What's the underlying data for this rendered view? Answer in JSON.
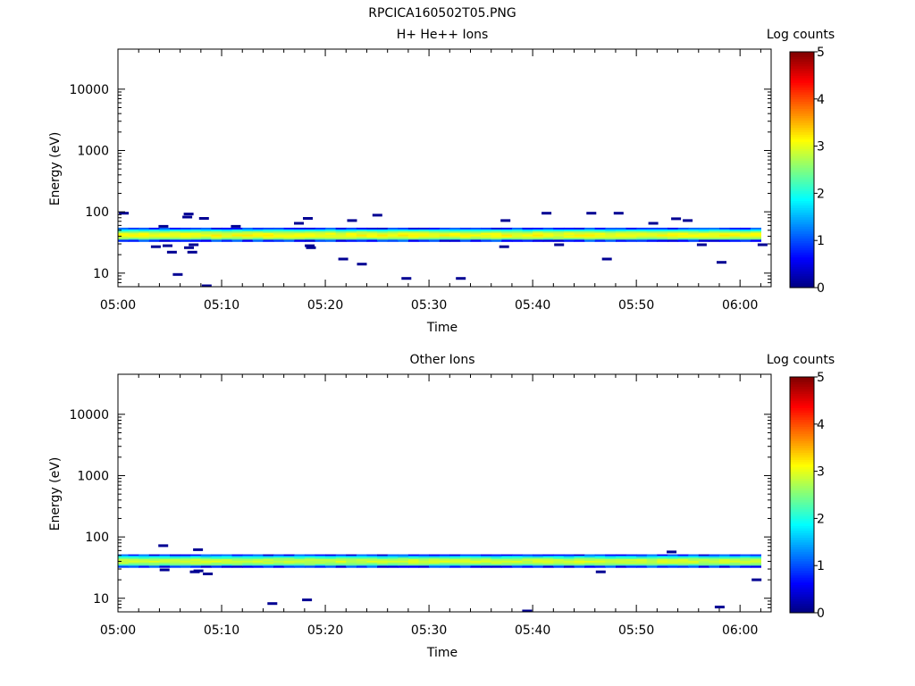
{
  "title": "RPCICA160502T05.PNG",
  "colors": {
    "colormap": [
      "#00007f",
      "#0000ff",
      "#007fff",
      "#00ffff",
      "#7fff7f",
      "#ffff00",
      "#ff7f00",
      "#ff0000",
      "#7f0000"
    ]
  },
  "chart_data": [
    {
      "type": "heatmap",
      "title": "H+ He++ Ions",
      "xlabel": "Time",
      "ylabel": "Energy (eV)",
      "xlim": [
        "05:00",
        "06:03"
      ],
      "ylim": [
        6,
        45000
      ],
      "yscale": "log",
      "xticks": [
        "05:00",
        "05:10",
        "05:20",
        "05:30",
        "05:40",
        "05:50",
        "06:00"
      ],
      "yticks": [
        "10",
        "100",
        "1000",
        "10000"
      ],
      "colorbar": {
        "label": "Log counts",
        "range": [
          0,
          5
        ],
        "ticks": [
          "0",
          "1",
          "2",
          "3",
          "4",
          "5"
        ]
      },
      "band": {
        "energy_low": 33,
        "energy_high": 55,
        "core_energy": 40,
        "peak_log_counts": 3.1
      },
      "sparse_points": [
        {
          "t": "05:01",
          "e": 95
        },
        {
          "t": "05:04",
          "e": 58
        },
        {
          "t": "05:04",
          "e": 27
        },
        {
          "t": "05:05",
          "e": 28
        },
        {
          "t": "05:05",
          "e": 22
        },
        {
          "t": "05:06",
          "e": 9.5
        },
        {
          "t": "05:07",
          "e": 92
        },
        {
          "t": "05:07",
          "e": 82
        },
        {
          "t": "05:07",
          "e": 29
        },
        {
          "t": "05:07",
          "e": 26
        },
        {
          "t": "05:07",
          "e": 22
        },
        {
          "t": "05:08",
          "e": 78
        },
        {
          "t": "05:09",
          "e": 6.2
        },
        {
          "t": "05:11",
          "e": 58
        },
        {
          "t": "05:17",
          "e": 65
        },
        {
          "t": "05:18",
          "e": 78
        },
        {
          "t": "05:18",
          "e": 28
        },
        {
          "t": "05:19",
          "e": 26
        },
        {
          "t": "05:22",
          "e": 17
        },
        {
          "t": "05:23",
          "e": 72
        },
        {
          "t": "05:23",
          "e": 14
        },
        {
          "t": "05:25",
          "e": 88
        },
        {
          "t": "05:28",
          "e": 8.2
        },
        {
          "t": "05:33",
          "e": 8.2
        },
        {
          "t": "05:37",
          "e": 72
        },
        {
          "t": "05:37",
          "e": 27
        },
        {
          "t": "05:41",
          "e": 95
        },
        {
          "t": "05:43",
          "e": 29
        },
        {
          "t": "05:46",
          "e": 95
        },
        {
          "t": "05:47",
          "e": 17
        },
        {
          "t": "05:48",
          "e": 95
        },
        {
          "t": "05:52",
          "e": 65
        },
        {
          "t": "05:54",
          "e": 77
        },
        {
          "t": "05:55",
          "e": 72
        },
        {
          "t": "05:56",
          "e": 29
        },
        {
          "t": "05:58",
          "e": 15
        },
        {
          "t": "06:02",
          "e": 29
        }
      ]
    },
    {
      "type": "heatmap",
      "title": "Other Ions",
      "xlabel": "Time",
      "ylabel": "Energy (eV)",
      "xlim": [
        "05:00",
        "06:03"
      ],
      "ylim": [
        6,
        45000
      ],
      "yscale": "log",
      "xticks": [
        "05:00",
        "05:10",
        "05:20",
        "05:30",
        "05:40",
        "05:50",
        "06:00"
      ],
      "yticks": [
        "10",
        "100",
        "1000",
        "10000"
      ],
      "colorbar": {
        "label": "Log counts",
        "range": [
          0,
          5
        ],
        "ticks": [
          "0",
          "1",
          "2",
          "3",
          "4",
          "5"
        ]
      },
      "band": {
        "energy_low": 32,
        "energy_high": 52,
        "core_energy": 38,
        "peak_log_counts": 2.9
      },
      "sparse_points": [
        {
          "t": "05:04",
          "e": 72
        },
        {
          "t": "05:04",
          "e": 29
        },
        {
          "t": "05:07",
          "e": 27
        },
        {
          "t": "05:08",
          "e": 62
        },
        {
          "t": "05:08",
          "e": 28
        },
        {
          "t": "05:09",
          "e": 25
        },
        {
          "t": "05:15",
          "e": 8.2
        },
        {
          "t": "05:18",
          "e": 9.4
        },
        {
          "t": "05:39",
          "e": 6.2
        },
        {
          "t": "05:47",
          "e": 27
        },
        {
          "t": "05:53",
          "e": 57
        },
        {
          "t": "05:58",
          "e": 7.2
        },
        {
          "t": "06:02",
          "e": 20
        }
      ]
    }
  ]
}
